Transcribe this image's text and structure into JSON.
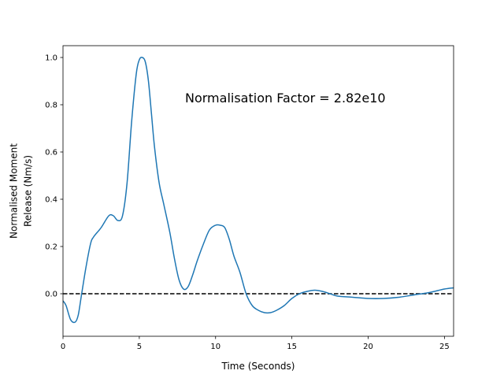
{
  "chart_data": {
    "type": "line",
    "title": "",
    "xlabel": "Time (Seconds)",
    "ylabel_lines": [
      "Normalised Moment",
      "Release (Nm/s)"
    ],
    "xlim": [
      0,
      25.6
    ],
    "ylim": [
      -0.18,
      1.05
    ],
    "xticks": [
      0,
      5,
      10,
      15,
      20,
      25
    ],
    "yticks": [
      0.0,
      0.2,
      0.4,
      0.6,
      0.8,
      1.0
    ],
    "ytick_labels": [
      "0.0",
      "0.2",
      "0.4",
      "0.6",
      "0.8",
      "1.0"
    ],
    "grid": false,
    "annotation": {
      "text": "Normalisation Factor = 2.82e10",
      "x": 8.0,
      "y": 0.81
    },
    "reference_line": {
      "y": 0.0,
      "style": "dashed",
      "color": "#000000"
    },
    "series": [
      {
        "color": "#1f77b4",
        "x": [
          0,
          0.2,
          0.5,
          0.8,
          1.0,
          1.2,
          1.5,
          1.8,
          2.0,
          2.5,
          3.0,
          3.3,
          3.6,
          3.9,
          4.2,
          4.5,
          4.8,
          5.0,
          5.2,
          5.4,
          5.6,
          5.8,
          6.0,
          6.3,
          6.6,
          7.0,
          7.3,
          7.6,
          7.9,
          8.2,
          8.5,
          8.8,
          9.2,
          9.6,
          10.0,
          10.3,
          10.6,
          10.9,
          11.2,
          11.6,
          12.0,
          12.4,
          12.8,
          13.2,
          13.6,
          14.0,
          14.5,
          15.0,
          15.5,
          16.0,
          16.5,
          17.0,
          17.5,
          18.0,
          19.0,
          20.0,
          21.0,
          22.0,
          23.0,
          24.0,
          25.0,
          25.6
        ],
        "y": [
          -0.03,
          -0.05,
          -0.11,
          -0.12,
          -0.09,
          -0.01,
          0.11,
          0.21,
          0.24,
          0.28,
          0.33,
          0.33,
          0.31,
          0.33,
          0.47,
          0.73,
          0.93,
          0.99,
          1.0,
          0.98,
          0.9,
          0.76,
          0.62,
          0.47,
          0.38,
          0.26,
          0.15,
          0.06,
          0.02,
          0.03,
          0.08,
          0.14,
          0.21,
          0.27,
          0.29,
          0.29,
          0.28,
          0.23,
          0.16,
          0.09,
          0.0,
          -0.05,
          -0.07,
          -0.08,
          -0.08,
          -0.07,
          -0.05,
          -0.02,
          0.0,
          0.01,
          0.015,
          0.01,
          0.0,
          -0.01,
          -0.015,
          -0.02,
          -0.02,
          -0.015,
          -0.005,
          0.005,
          0.02,
          0.025
        ]
      }
    ]
  }
}
